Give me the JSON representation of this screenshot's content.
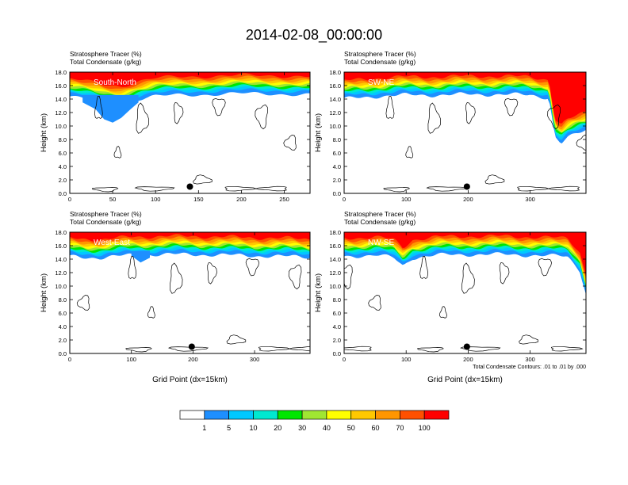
{
  "title": "2014-02-08_00:00:00",
  "colorbar": {
    "labels": [
      "1",
      "5",
      "10",
      "20",
      "30",
      "40",
      "50",
      "60",
      "70",
      "100"
    ],
    "colors": [
      "#ffffff",
      "#1e8fff",
      "#00c8ff",
      "#00e8d0",
      "#00e600",
      "#a0e632",
      "#ffff00",
      "#ffc800",
      "#ff9600",
      "#ff5000",
      "#ff0000"
    ]
  },
  "chart_data": [
    {
      "type": "heatmap",
      "label": "South-North",
      "header": [
        "Stratosphere Tracer   (%)",
        "Total Condensate   (g/kg)"
      ],
      "ylabel": "Height (km)",
      "xlabel": "",
      "xlim": [
        0,
        280
      ],
      "ylim": [
        0,
        18
      ],
      "xticks": [
        "0",
        "50",
        "100",
        "150",
        "200",
        "250"
      ],
      "xtick_values": [
        0,
        50,
        100,
        150,
        200,
        250
      ],
      "yticks": [
        "0.0",
        "2.0",
        "4.0",
        "6.0",
        "8.0",
        "10.0",
        "12.0",
        "14.0",
        "16.0",
        "18.0"
      ],
      "marker_x": 140,
      "marker_y": 1.0,
      "tropopause_km": [
        [
          0,
          15.0
        ],
        [
          20,
          14.5
        ],
        [
          40,
          14.0
        ],
        [
          60,
          13.8
        ],
        [
          80,
          14.6
        ],
        [
          100,
          15.0
        ],
        [
          130,
          15.2
        ],
        [
          160,
          15.3
        ],
        [
          200,
          15.4
        ],
        [
          240,
          15.4
        ],
        [
          280,
          15.2
        ]
      ],
      "deep_intrusion_km": [
        [
          15,
          13.5
        ],
        [
          30,
          12.5
        ],
        [
          40,
          11.0
        ],
        [
          50,
          10.5
        ],
        [
          60,
          11.2
        ],
        [
          70,
          12.4
        ],
        [
          80,
          13.5
        ]
      ]
    },
    {
      "type": "heatmap",
      "label": "SW-NE",
      "header": [
        "Stratosphere Tracer   (%)",
        "Total Condensate   (g/kg)"
      ],
      "ylabel": "Height (km)",
      "xlabel": "",
      "xlim": [
        0,
        390
      ],
      "ylim": [
        0,
        18
      ],
      "xticks": [
        "0",
        "100",
        "200",
        "300"
      ],
      "xtick_values": [
        0,
        100,
        200,
        300
      ],
      "yticks": [
        "0.0",
        "2.0",
        "4.0",
        "6.0",
        "8.0",
        "10.0",
        "12.0",
        "14.0",
        "16.0",
        "18.0"
      ],
      "marker_x": 198,
      "marker_y": 1.0,
      "tropopause_km": [
        [
          0,
          14.6
        ],
        [
          50,
          15.0
        ],
        [
          100,
          15.2
        ],
        [
          150,
          15.2
        ],
        [
          200,
          15.3
        ],
        [
          250,
          15.3
        ],
        [
          300,
          15.2
        ],
        [
          330,
          14.8
        ],
        [
          335,
          12.0
        ],
        [
          340,
          9.0
        ],
        [
          350,
          8.0
        ],
        [
          360,
          8.8
        ],
        [
          390,
          10.0
        ]
      ],
      "deep_intrusion_km": []
    },
    {
      "type": "heatmap",
      "label": "West-East",
      "header": [
        "Stratosphere Tracer   (%)",
        "Total Condensate   (g/kg)"
      ],
      "ylabel": "Height (km)",
      "xlabel": "Grid Point (dx=15km)",
      "xlim": [
        0,
        390
      ],
      "ylim": [
        0,
        18
      ],
      "xticks": [
        "0",
        "100",
        "200",
        "300"
      ],
      "xtick_values": [
        0,
        100,
        200,
        300
      ],
      "yticks": [
        "0.0",
        "2.0",
        "4.0",
        "6.0",
        "8.0",
        "10.0",
        "12.0",
        "14.0",
        "16.0",
        "18.0"
      ],
      "marker_x": 198,
      "marker_y": 1.0,
      "tropopause_km": [
        [
          0,
          15.0
        ],
        [
          50,
          14.8
        ],
        [
          100,
          15.2
        ],
        [
          150,
          15.3
        ],
        [
          200,
          15.3
        ],
        [
          250,
          15.2
        ],
        [
          300,
          15.1
        ],
        [
          350,
          15.0
        ],
        [
          390,
          14.9
        ]
      ],
      "deep_intrusion_km": [
        [
          100,
          14.5
        ],
        [
          115,
          13.5
        ],
        [
          130,
          14.2
        ]
      ]
    },
    {
      "type": "heatmap",
      "label": "NW-SE",
      "header": [
        "Stratosphere Tracer   (%)",
        "Total Condensate   (g/kg)"
      ],
      "ylabel": "Height (km)",
      "xlabel": "Grid Point (dx=15km)",
      "xlim": [
        0,
        390
      ],
      "ylim": [
        0,
        18
      ],
      "xticks": [
        "0",
        "100",
        "200",
        "300"
      ],
      "xtick_values": [
        0,
        100,
        200,
        300
      ],
      "yticks": [
        "0.0",
        "2.0",
        "4.0",
        "6.0",
        "8.0",
        "10.0",
        "12.0",
        "14.0",
        "16.0",
        "18.0"
      ],
      "marker_x": 198,
      "marker_y": 1.0,
      "tropopause_km": [
        [
          0,
          15.0
        ],
        [
          50,
          15.2
        ],
        [
          80,
          14.8
        ],
        [
          95,
          13.6
        ],
        [
          110,
          14.8
        ],
        [
          150,
          15.2
        ],
        [
          200,
          15.3
        ],
        [
          250,
          15.3
        ],
        [
          300,
          15.2
        ],
        [
          360,
          15.0
        ],
        [
          380,
          13.0
        ],
        [
          390,
          9.5
        ]
      ],
      "deep_intrusion_km": [],
      "footnote": "Total Condensate Contours: .01 to .01 by .000"
    }
  ]
}
